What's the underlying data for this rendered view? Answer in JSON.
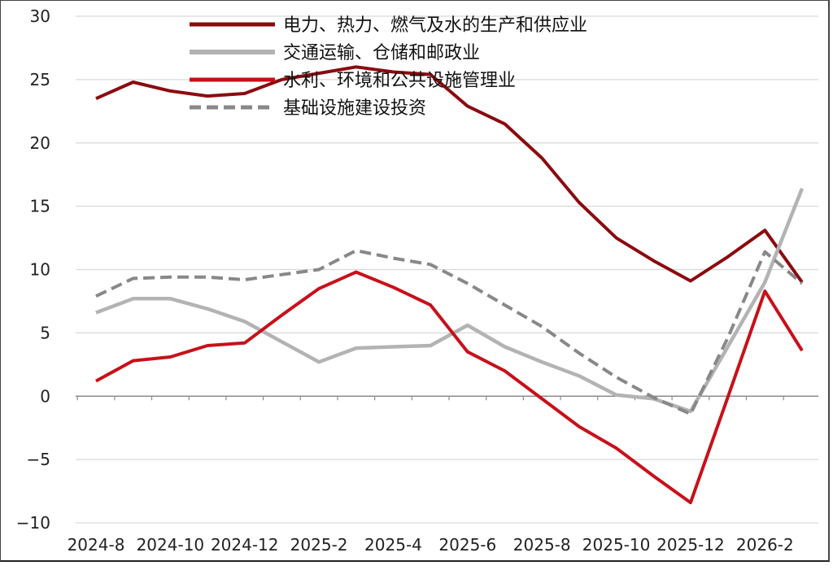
{
  "chart_data": {
    "type": "line",
    "title": "",
    "xlabel": "",
    "ylabel": "",
    "ylim": [
      -10,
      30
    ],
    "yticks": [
      -10,
      -5,
      0,
      5,
      10,
      15,
      20,
      25,
      30
    ],
    "ytick_labels": [
      "−10",
      "−5",
      "0",
      "5",
      "10",
      "15",
      "20",
      "25",
      "30"
    ],
    "categories": [
      "2024-8",
      "2024-9",
      "2024-10",
      "2024-11",
      "2024-12",
      "2025-1",
      "2025-2",
      "2025-3",
      "2025-4",
      "2025-5",
      "2025-6",
      "2025-7",
      "2025-8",
      "2025-9",
      "2025-10",
      "2025-11",
      "2025-12",
      "2026-1",
      "2026-2",
      "2026-3"
    ],
    "xtick_labels": [
      {
        "index": 0,
        "label": "2024-8"
      },
      {
        "index": 2,
        "label": "2024-10"
      },
      {
        "index": 4,
        "label": "2024-12"
      },
      {
        "index": 6,
        "label": "2025-2"
      },
      {
        "index": 8,
        "label": "2025-4"
      },
      {
        "index": 10,
        "label": "2025-6"
      },
      {
        "index": 12,
        "label": "2025-8"
      },
      {
        "index": 14,
        "label": "2025-10"
      },
      {
        "index": 16,
        "label": "2025-12"
      },
      {
        "index": 18,
        "label": "2026-2"
      }
    ],
    "grid": true,
    "legend_position": "top-center",
    "series": [
      {
        "name": "电力、热力、燃气及水的生产和供应业",
        "color": "#8b0a0e",
        "dash": false,
        "values": [
          23.5,
          24.8,
          24.1,
          23.7,
          23.9,
          25.0,
          25.5,
          26.0,
          25.6,
          25.4,
          22.9,
          21.5,
          18.8,
          15.3,
          12.5,
          10.7,
          9.1,
          11.0,
          13.1,
          9.0
        ]
      },
      {
        "name": "交通运输、仓储和邮政业",
        "color": "#b3b3b3",
        "dash": false,
        "values": [
          6.6,
          7.7,
          7.7,
          6.9,
          5.9,
          4.3,
          2.7,
          3.8,
          3.9,
          4.0,
          5.6,
          3.9,
          2.7,
          1.6,
          0.1,
          -0.2,
          -1.2,
          3.9,
          9.0,
          16.4
        ]
      },
      {
        "name": "水利、环境和公共设施管理业",
        "color": "#c8101a",
        "dash": false,
        "values": [
          1.2,
          2.8,
          3.1,
          4.0,
          4.2,
          6.4,
          8.5,
          9.8,
          8.6,
          7.2,
          3.5,
          2.0,
          -0.2,
          -2.4,
          -4.1,
          -6.3,
          -8.4,
          -0.1,
          8.3,
          3.6
        ]
      },
      {
        "name": "基础设施建设投资",
        "color": "#888888",
        "dash": true,
        "values": [
          7.9,
          9.3,
          9.4,
          9.4,
          9.2,
          9.6,
          10.0,
          11.5,
          10.9,
          10.4,
          8.9,
          7.2,
          5.5,
          3.4,
          1.5,
          -0.1,
          -1.4,
          4.6,
          11.4,
          8.9
        ]
      }
    ]
  }
}
